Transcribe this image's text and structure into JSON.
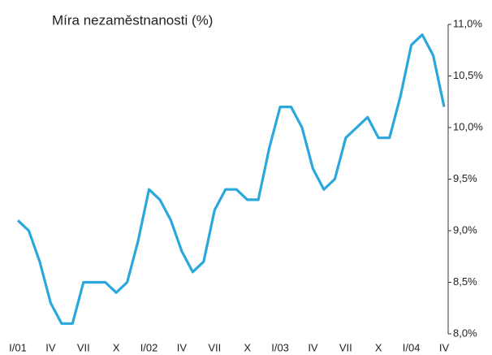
{
  "chart_data": {
    "type": "line",
    "title": "Míra nezaměstnanosti (%)",
    "categories": [
      "I/01",
      null,
      null,
      "IV",
      null,
      null,
      "VII",
      null,
      null,
      "X",
      null,
      null,
      "I/02",
      null,
      null,
      "IV",
      null,
      null,
      "VII",
      null,
      null,
      "X",
      null,
      null,
      "I/03",
      null,
      null,
      "IV",
      null,
      null,
      "VII",
      null,
      null,
      "X",
      null,
      null,
      "I/04",
      null,
      null,
      "IV"
    ],
    "series": [
      {
        "name": "Míra nezaměstnanosti",
        "color": "#2aa8dc",
        "values": [
          9.1,
          9.0,
          8.7,
          8.3,
          8.1,
          8.1,
          8.5,
          8.5,
          8.5,
          8.4,
          8.5,
          8.9,
          9.4,
          9.3,
          9.1,
          8.8,
          8.6,
          8.7,
          9.2,
          9.4,
          9.4,
          9.3,
          9.3,
          9.8,
          10.2,
          10.2,
          10.0,
          9.6,
          9.4,
          9.5,
          9.9,
          10.0,
          10.1,
          9.9,
          9.9,
          10.3,
          10.8,
          10.9,
          10.7,
          10.2
        ]
      }
    ],
    "ylim": [
      8.0,
      11.0
    ],
    "yticks": [
      {
        "value": 8.0,
        "label": "8,0%"
      },
      {
        "value": 8.5,
        "label": "8,5%"
      },
      {
        "value": 9.0,
        "label": "9,0%"
      },
      {
        "value": 9.5,
        "label": "9,5%"
      },
      {
        "value": 10.0,
        "label": "10,0%"
      },
      {
        "value": 10.5,
        "label": "10,5%"
      },
      {
        "value": 11.0,
        "label": "11,0%"
      }
    ],
    "grid": false
  }
}
